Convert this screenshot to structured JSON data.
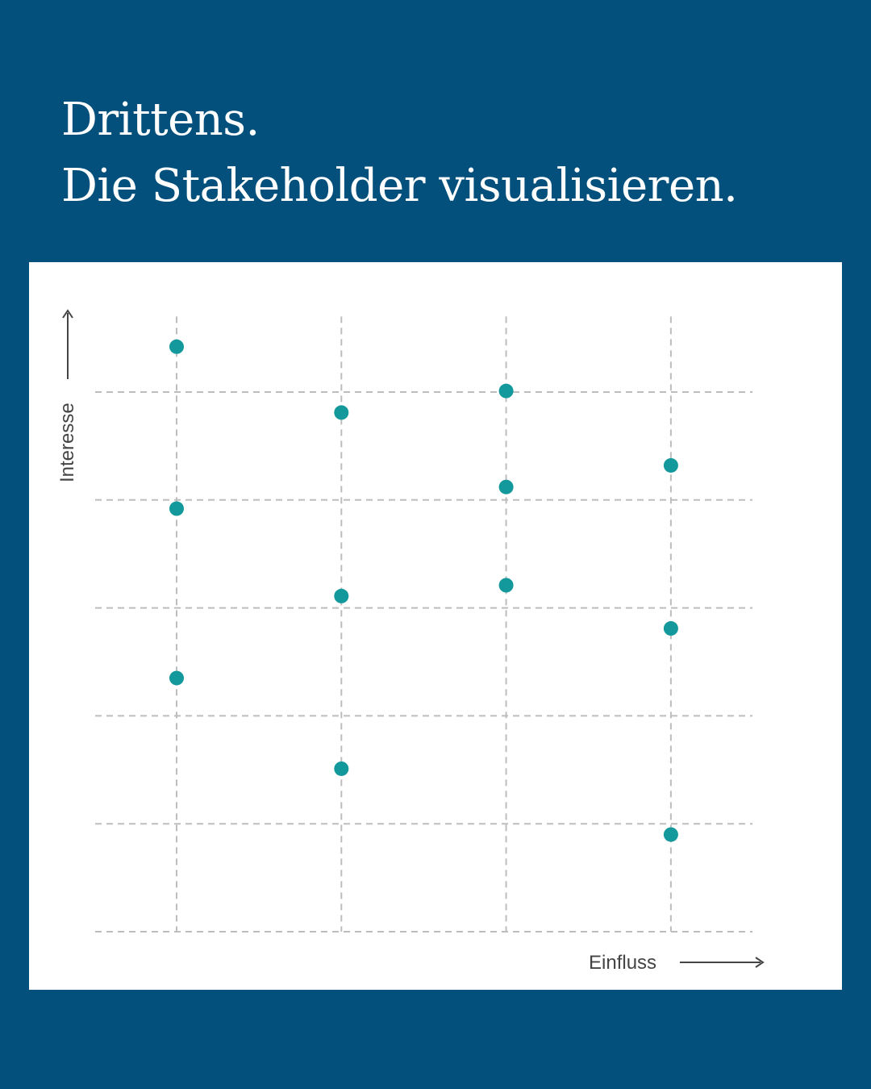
{
  "header": {
    "line1": "Drittens.",
    "line2": "Die Stakeholder visualisieren."
  },
  "colors": {
    "background": "#02507b",
    "point": "#13999b",
    "grid": "#bdbdbd"
  },
  "chart_data": {
    "type": "scatter",
    "title": "",
    "xlabel": "Einfluss",
    "ylabel": "Interesse",
    "x_gridlines": [
      1,
      2,
      3,
      4
    ],
    "y_gridlines": [
      0,
      1,
      2,
      3,
      4,
      5
    ],
    "xlim": [
      0.5,
      4.5
    ],
    "ylim": [
      0,
      5.7
    ],
    "grid": true,
    "points": [
      {
        "x": 1,
        "y": 5.42
      },
      {
        "x": 1,
        "y": 3.92
      },
      {
        "x": 1,
        "y": 2.35
      },
      {
        "x": 2,
        "y": 4.81
      },
      {
        "x": 2,
        "y": 3.11
      },
      {
        "x": 2,
        "y": 1.51
      },
      {
        "x": 3,
        "y": 5.01
      },
      {
        "x": 3,
        "y": 4.12
      },
      {
        "x": 3,
        "y": 3.21
      },
      {
        "x": 4,
        "y": 4.32
      },
      {
        "x": 4,
        "y": 2.81
      },
      {
        "x": 4,
        "y": 0.9
      }
    ]
  }
}
